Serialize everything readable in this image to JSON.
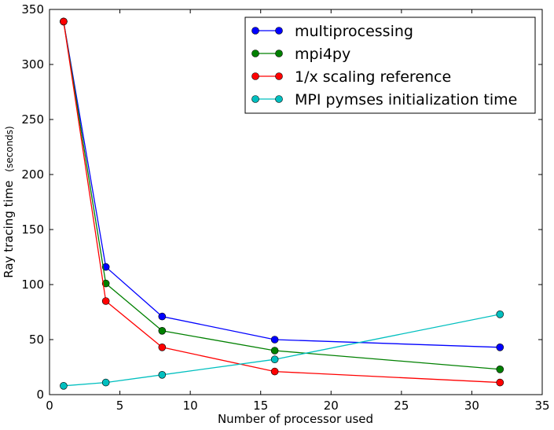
{
  "chart_data": {
    "type": "line",
    "title": "",
    "xlabel": "Number of processor used",
    "ylabel": "Ray tracing time",
    "ylabel_unit": "(seconds)",
    "xlim": [
      0,
      35
    ],
    "ylim": [
      0,
      350
    ],
    "xticks": [
      0,
      5,
      10,
      15,
      20,
      25,
      30,
      35
    ],
    "yticks": [
      0,
      50,
      100,
      150,
      200,
      250,
      300,
      350
    ],
    "grid": false,
    "legend_position": "top-right",
    "series": [
      {
        "name": "multiprocessing",
        "color": "#0000ff",
        "x": [
          1,
          4,
          8,
          16,
          32
        ],
        "y": [
          339,
          116,
          71,
          50,
          43
        ]
      },
      {
        "name": "mpi4py",
        "color": "#008000",
        "x": [
          1,
          4,
          8,
          16,
          32
        ],
        "y": [
          339,
          101,
          58,
          40,
          23
        ]
      },
      {
        "name": "1/x scaling reference",
        "color": "#ff0000",
        "x": [
          1,
          4,
          8,
          16,
          32
        ],
        "y": [
          339,
          85,
          43,
          21,
          11
        ]
      },
      {
        "name": "MPI pymses initialization time",
        "color": "#00bfbf",
        "x": [
          1,
          4,
          8,
          16,
          32
        ],
        "y": [
          8,
          11,
          18,
          32,
          73
        ]
      }
    ]
  }
}
